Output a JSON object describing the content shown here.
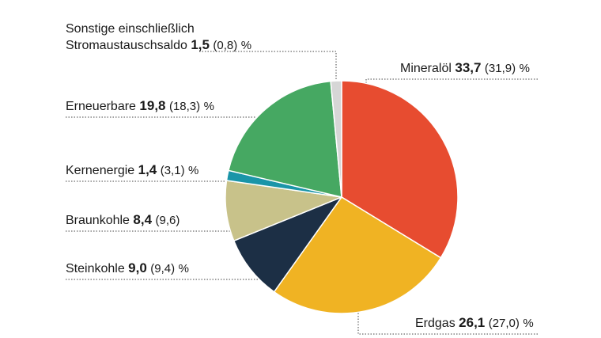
{
  "chart_data": {
    "type": "pie",
    "unit": "%",
    "slices": [
      {
        "label": "Mineralöl",
        "value": 33.7,
        "display": "33,7",
        "prev": "(31,9)",
        "unit": "%",
        "color": "#e74c30"
      },
      {
        "label": "Erdgas",
        "value": 26.1,
        "display": "26,1",
        "prev": "(27,0)",
        "unit": "%",
        "color": "#f0b323"
      },
      {
        "label": "Steinkohle",
        "value": 9.0,
        "display": "9,0",
        "prev": "(9,4)",
        "unit": "%",
        "color": "#1c2f45"
      },
      {
        "label": "Braunkohle",
        "value": 8.4,
        "display": "8,4",
        "prev": "(9,6)",
        "unit": "",
        "color": "#c8c28a"
      },
      {
        "label": "Kernenergie",
        "value": 1.4,
        "display": "1,4",
        "prev": "(3,1)",
        "unit": "%",
        "color": "#1a95a8"
      },
      {
        "label": "Erneuerbare",
        "value": 19.8,
        "display": "19,8",
        "prev": "(18,3)",
        "unit": "%",
        "color": "#46a862"
      },
      {
        "label": "Sonstige einschließlich",
        "label2": "Stromaustauschsaldo",
        "value": 1.5,
        "display": "1,5",
        "prev": "(0,8)",
        "unit": "%",
        "color": "#d6d6d6"
      }
    ]
  }
}
